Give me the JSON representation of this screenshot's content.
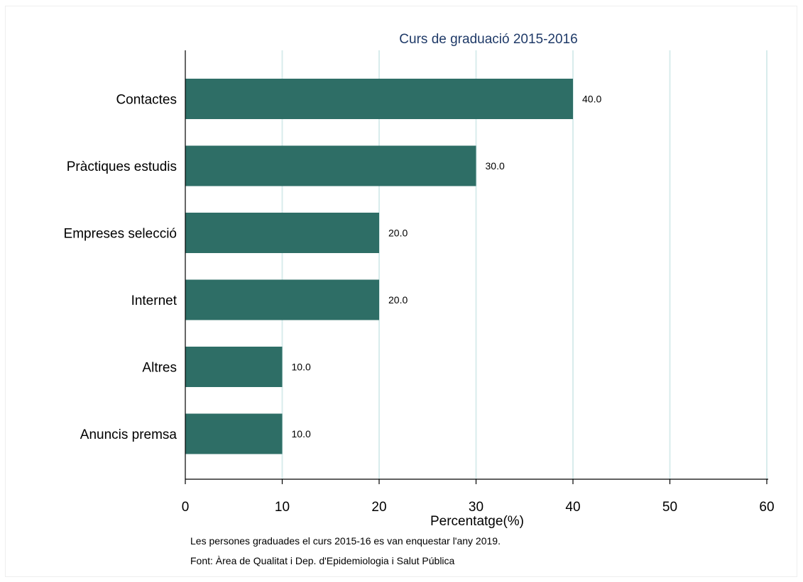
{
  "chart_data": {
    "type": "bar",
    "orientation": "horizontal",
    "title": "Curs de graduació 2015-2016",
    "xlabel": "Percentatge(%)",
    "ylabel": "",
    "categories": [
      "Contactes",
      "Pràctiques estudis",
      "Empreses selecció",
      "Internet",
      "Altres",
      "Anuncis premsa"
    ],
    "values": [
      40.0,
      30.0,
      20.0,
      20.0,
      10.0,
      10.0
    ],
    "data_labels": [
      "40.0",
      "30.0",
      "20.0",
      "20.0",
      "10.0",
      "10.0"
    ],
    "xlim": [
      0,
      60
    ],
    "xticks": [
      "0",
      "10",
      "20",
      "30",
      "40",
      "50",
      "60"
    ],
    "grid": "vertical",
    "legend": "none",
    "colors": {
      "bar": "#2e6e66",
      "grid": "#d8ecec",
      "title": "#1f3a68"
    }
  },
  "notes": {
    "line1": "Les persones graduades el curs 2015-16 es van enquestar l'any 2019.",
    "line2": "Font: Àrea de Qualitat i Dep. d'Epidemiologia i Salut Pública"
  }
}
